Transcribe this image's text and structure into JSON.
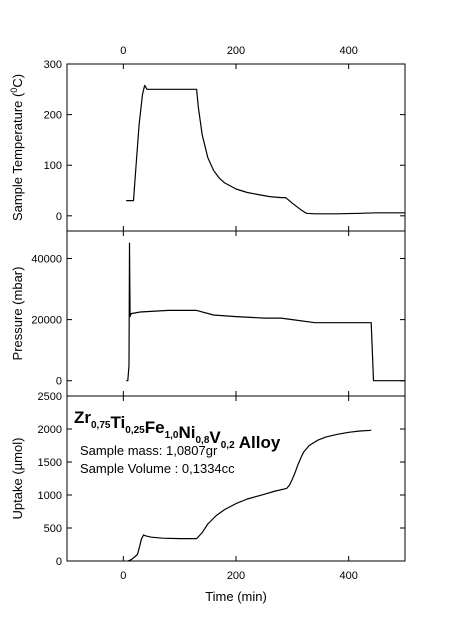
{
  "chart_data": {
    "type": "line",
    "layout": "three vertically stacked panels sharing the time axis",
    "xlabel": "Time (min)",
    "xlim": [
      -100,
      500
    ],
    "xticks": [
      0,
      200,
      400
    ],
    "panels": [
      {
        "id": "temperature",
        "ylabel_parts": [
          "Sample Temperature (",
          "0",
          "C)"
        ],
        "ylim": [
          -30,
          300
        ],
        "yticks": [
          0,
          100,
          200,
          300
        ],
        "series": [
          {
            "x": [
              5,
              18,
              22,
              28,
              34,
              38,
              42,
              60,
              100,
              130,
              133,
              140,
              150,
              160,
              170,
              180,
              200,
              220,
              240,
              260,
              280,
              288,
              300,
              315,
              325,
              340,
              380,
              420,
              450,
              500
            ],
            "y": [
              30,
              30,
              90,
              180,
              240,
              258,
              250,
              250,
              250,
              250,
              215,
              160,
              115,
              90,
              75,
              65,
              53,
              46,
              42,
              38,
              36,
              36,
              25,
              12,
              5,
              4,
              4,
              5,
              6,
              6
            ]
          }
        ]
      },
      {
        "id": "pressure",
        "ylabel": "Pressure (mbar)",
        "ylim": [
          -5000,
          49000
        ],
        "yticks": [
          0,
          20000,
          40000
        ],
        "series": [
          {
            "x": [
              5,
              8,
              10,
              11,
              11.5,
              12,
              12.5,
              13,
              14,
              15,
              30,
              80,
              130,
              160,
              200,
              250,
              280,
              300,
              340,
              390,
              440,
              444,
              450,
              470,
              500
            ],
            "y": [
              0,
              0,
              5000,
              45000,
              32000,
              21000,
              22000,
              21500,
              22000,
              22000,
              22500,
              23000,
              23000,
              21500,
              21000,
              20500,
              20500,
              20000,
              19000,
              19000,
              19000,
              0,
              0,
              0,
              0
            ]
          }
        ]
      },
      {
        "id": "uptake",
        "ylabel": "Uptake (µmol)",
        "ylim": [
          0,
          2500
        ],
        "yticks": [
          0,
          500,
          1000,
          1500,
          2000,
          2500
        ],
        "series": [
          {
            "x": [
              8,
              14,
              20,
              25,
              28,
              32,
              36,
              40,
              50,
              70,
              100,
              130,
              140,
              150,
              165,
              180,
              200,
              220,
              250,
              270,
              290,
              295,
              300,
              305,
              310,
              315,
              320,
              330,
              345,
              360,
              380,
              400,
              420,
              440
            ],
            "y": [
              0,
              20,
              60,
              100,
              190,
              330,
              395,
              380,
              360,
              345,
              340,
              340,
              430,
              560,
              690,
              780,
              870,
              940,
              1010,
              1060,
              1100,
              1150,
              1240,
              1340,
              1460,
              1560,
              1650,
              1750,
              1830,
              1880,
              1920,
              1950,
              1970,
              1980
            ]
          }
        ]
      }
    ]
  },
  "annotations": {
    "alloy_formula": [
      {
        "base": "Zr",
        "sub": "0,75"
      },
      {
        "base": "Ti",
        "sub": "0,25"
      },
      {
        "base": "Fe",
        "sub": "1,0"
      },
      {
        "base": "Ni",
        "sub": "0,8"
      },
      {
        "base": "V",
        "sub": "0,2"
      }
    ],
    "alloy_word": "Alloy",
    "sample_mass": "Sample mass: 1,0807gr",
    "sample_volume": "Sample Volume : 0,1334cc"
  }
}
